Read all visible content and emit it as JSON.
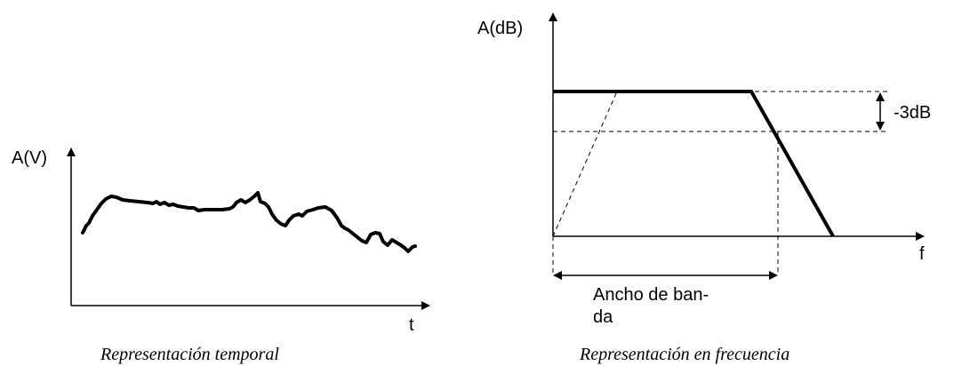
{
  "time_panel": {
    "y_axis_label": "A(V)",
    "x_axis_label": "t",
    "caption": "Representación temporal"
  },
  "freq_panel": {
    "y_axis_label": "A(dB)",
    "x_axis_label": "f",
    "attenuation_label": "-3dB",
    "bandwidth_label_line1": "Ancho de ban-",
    "bandwidth_label_line2": "da",
    "caption": "Representación en frecuencia"
  }
}
